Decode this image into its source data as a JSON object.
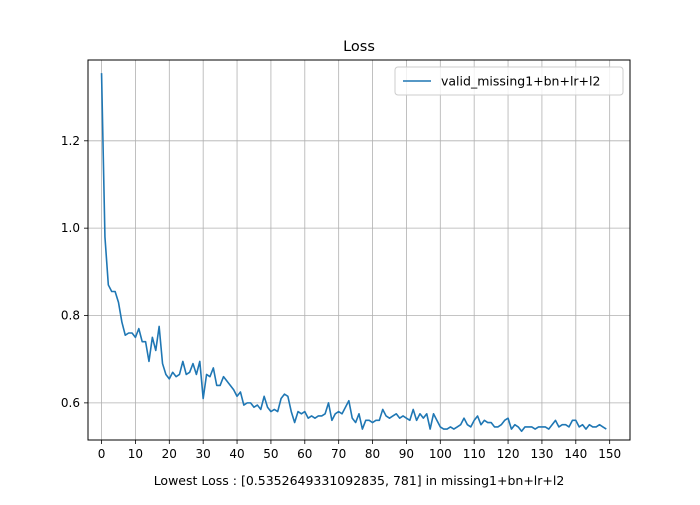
{
  "chart_data": {
    "type": "line",
    "title": "Loss",
    "xlabel": "Lowest Loss : [0.5352649331092835, 781] in missing1+bn+lr+l2",
    "ylabel": "",
    "xlim": [
      -4,
      156
    ],
    "ylim": [
      0.515,
      1.385
    ],
    "xticks": [
      0,
      10,
      20,
      30,
      40,
      50,
      60,
      70,
      80,
      90,
      100,
      110,
      120,
      130,
      140,
      150
    ],
    "yticks": [
      0.6,
      0.8,
      1.0,
      1.2
    ],
    "ytick_labels": [
      "0.6",
      "0.8",
      "1.0",
      "1.2"
    ],
    "grid": true,
    "legend_position": "upper-right",
    "series": [
      {
        "name": "valid_missing1+bn+lr+l2",
        "color": "#1f77b4",
        "x": [
          0,
          1,
          2,
          3,
          4,
          5,
          6,
          7,
          8,
          9,
          10,
          11,
          12,
          13,
          14,
          15,
          16,
          17,
          18,
          19,
          20,
          21,
          22,
          23,
          24,
          25,
          26,
          27,
          28,
          29,
          30,
          31,
          32,
          33,
          34,
          35,
          36,
          37,
          38,
          39,
          40,
          41,
          42,
          43,
          44,
          45,
          46,
          47,
          48,
          49,
          50,
          51,
          52,
          53,
          54,
          55,
          56,
          57,
          58,
          59,
          60,
          61,
          62,
          63,
          64,
          65,
          66,
          67,
          68,
          69,
          70,
          71,
          72,
          73,
          74,
          75,
          76,
          77,
          78,
          79,
          80,
          81,
          82,
          83,
          84,
          85,
          86,
          87,
          88,
          89,
          90,
          91,
          92,
          93,
          94,
          95,
          96,
          97,
          98,
          99,
          100,
          101,
          102,
          103,
          104,
          105,
          106,
          107,
          108,
          109,
          110,
          111,
          112,
          113,
          114,
          115,
          116,
          117,
          118,
          119,
          120,
          121,
          122,
          123,
          124,
          125,
          126,
          127,
          128,
          129,
          130,
          131,
          132,
          133,
          134,
          135,
          136,
          137,
          138,
          139,
          140,
          141,
          142,
          143,
          144,
          145,
          146,
          147,
          148,
          149
        ],
        "y": [
          1.355,
          0.98,
          0.87,
          0.855,
          0.855,
          0.83,
          0.785,
          0.755,
          0.76,
          0.76,
          0.75,
          0.77,
          0.74,
          0.74,
          0.695,
          0.75,
          0.72,
          0.775,
          0.69,
          0.665,
          0.655,
          0.67,
          0.66,
          0.665,
          0.695,
          0.665,
          0.67,
          0.69,
          0.665,
          0.695,
          0.61,
          0.665,
          0.66,
          0.68,
          0.64,
          0.64,
          0.66,
          0.65,
          0.64,
          0.63,
          0.615,
          0.625,
          0.595,
          0.6,
          0.6,
          0.59,
          0.595,
          0.585,
          0.615,
          0.59,
          0.58,
          0.585,
          0.58,
          0.61,
          0.62,
          0.615,
          0.58,
          0.555,
          0.58,
          0.575,
          0.58,
          0.565,
          0.57,
          0.565,
          0.57,
          0.57,
          0.575,
          0.6,
          0.56,
          0.575,
          0.58,
          0.575,
          0.59,
          0.605,
          0.565,
          0.555,
          0.575,
          0.54,
          0.56,
          0.56,
          0.555,
          0.56,
          0.56,
          0.585,
          0.57,
          0.565,
          0.57,
          0.575,
          0.565,
          0.57,
          0.565,
          0.56,
          0.585,
          0.56,
          0.575,
          0.565,
          0.575,
          0.54,
          0.575,
          0.56,
          0.545,
          0.54,
          0.54,
          0.545,
          0.54,
          0.545,
          0.55,
          0.565,
          0.55,
          0.545,
          0.56,
          0.57,
          0.55,
          0.56,
          0.555,
          0.555,
          0.545,
          0.545,
          0.55,
          0.56,
          0.565,
          0.54,
          0.55,
          0.545,
          0.535,
          0.545,
          0.545,
          0.545,
          0.54,
          0.545,
          0.545,
          0.545,
          0.54,
          0.55,
          0.56,
          0.545,
          0.55,
          0.55,
          0.545,
          0.56,
          0.56,
          0.545,
          0.55,
          0.54,
          0.55,
          0.545,
          0.545,
          0.55,
          0.545,
          0.54
        ]
      }
    ]
  }
}
